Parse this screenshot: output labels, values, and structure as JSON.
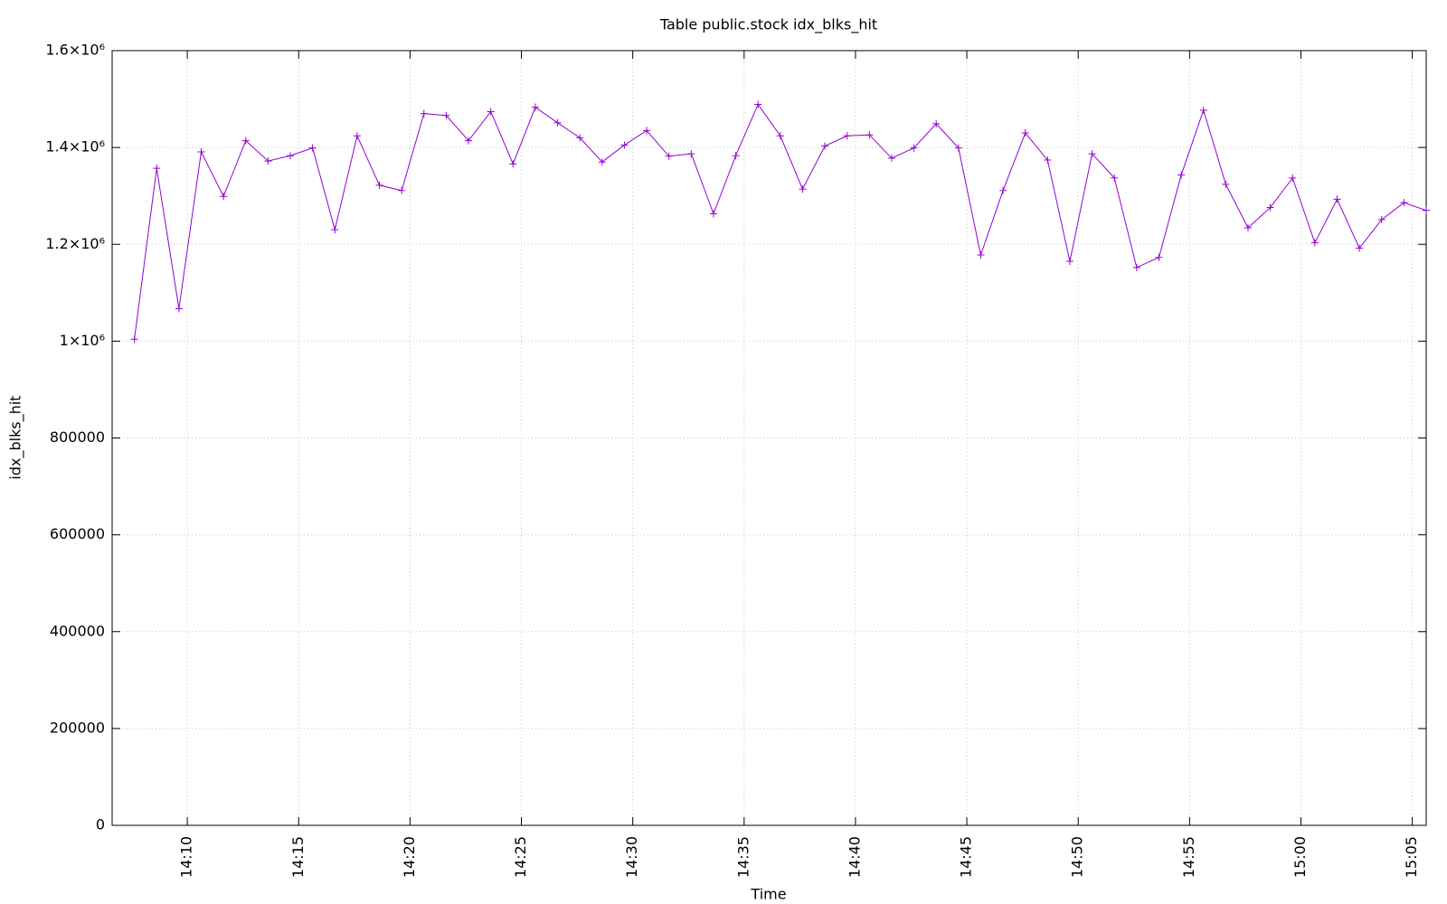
{
  "chart_data": {
    "type": "line",
    "title": "Table public.stock idx_blks_hit",
    "x_label": "Time",
    "y_label": "idx_blks_hit",
    "x": [
      847.625,
      848.625,
      849.625,
      850.625,
      851.625,
      852.625,
      853.625,
      854.625,
      855.625,
      856.625,
      857.625,
      858.625,
      859.625,
      860.625,
      861.625,
      862.625,
      863.625,
      864.625,
      865.625,
      866.625,
      867.625,
      868.625,
      869.625,
      870.625,
      871.625,
      872.625,
      873.625,
      874.625,
      875.625,
      876.625,
      877.625,
      878.625,
      879.625,
      880.625,
      881.625,
      882.625,
      883.625,
      884.625,
      885.625,
      886.625,
      887.625,
      888.625,
      889.625,
      890.625,
      891.625,
      892.625,
      893.625,
      894.625,
      895.625,
      896.625,
      897.625,
      898.625,
      899.625,
      900.625,
      901.625,
      902.625,
      903.625,
      904.625,
      905.625
    ],
    "series": [
      {
        "name": "idx_blks_hit",
        "color": "#9400d3",
        "values": [
          1004000,
          1357000,
          1067000,
          1391000,
          1299000,
          1414000,
          1372000,
          1383000,
          1399000,
          1230000,
          1424000,
          1322000,
          1311000,
          1470000,
          1466000,
          1414000,
          1474000,
          1366000,
          1483000,
          1451000,
          1420000,
          1370000,
          1405000,
          1435000,
          1382000,
          1387000,
          1263000,
          1383000,
          1489000,
          1424000,
          1314000,
          1403000,
          1424000,
          1426000,
          1378000,
          1399000,
          1449000,
          1399000,
          1178000,
          1311000,
          1430000,
          1374000,
          1165000,
          1387000,
          1337000,
          1152000,
          1173000,
          1343000,
          1477000,
          1324000,
          1234000,
          1276000,
          1337000,
          1203000,
          1293000,
          1192000,
          1251000,
          1286000,
          1270000
        ]
      }
    ],
    "xlim": [
      846.625,
      905.625
    ],
    "xticks": [
      {
        "value": 850,
        "label": "14:10"
      },
      {
        "value": 855,
        "label": "14:15"
      },
      {
        "value": 860,
        "label": "14:20"
      },
      {
        "value": 865,
        "label": "14:25"
      },
      {
        "value": 870,
        "label": "14:30"
      },
      {
        "value": 875,
        "label": "14:35"
      },
      {
        "value": 880,
        "label": "14:40"
      },
      {
        "value": 885,
        "label": "14:45"
      },
      {
        "value": 890,
        "label": "14:50"
      },
      {
        "value": 895,
        "label": "14:55"
      },
      {
        "value": 900,
        "label": "15:00"
      },
      {
        "value": 905,
        "label": "15:05"
      }
    ],
    "ylim": [
      0,
      1600000
    ],
    "yticks": [
      0,
      200000,
      400000,
      600000,
      800000,
      {
        "value": 1000000,
        "label": "1×10⁶"
      },
      {
        "value": 1200000,
        "label": "1.2×10⁶"
      },
      {
        "value": 1400000,
        "label": "1.4×10⁶"
      },
      {
        "value": 1600000,
        "label": "1.6×10⁶"
      }
    ],
    "grid": true
  }
}
